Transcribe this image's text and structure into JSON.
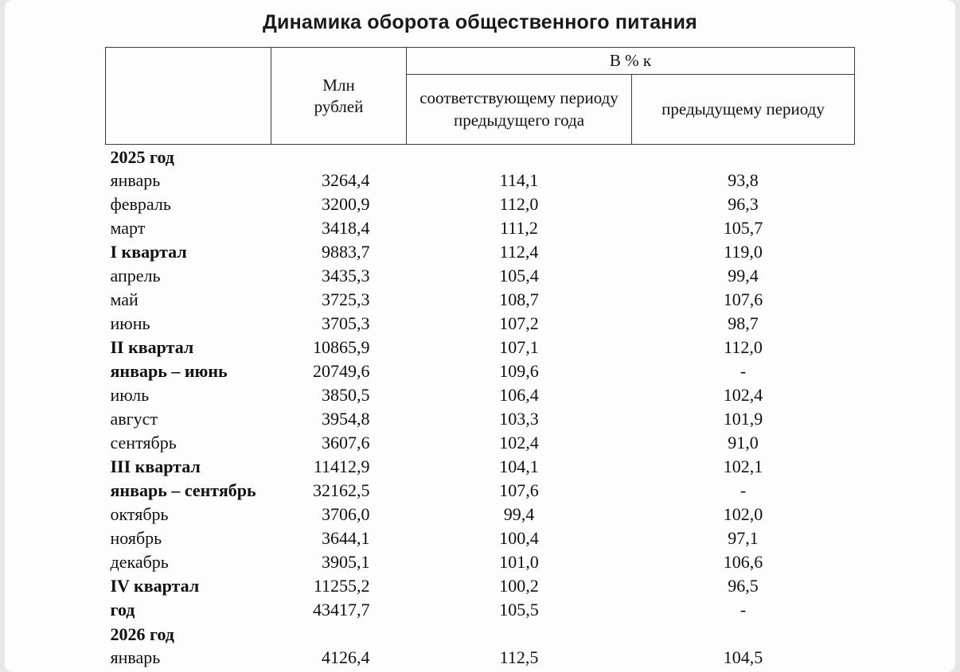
{
  "title": "Динамика оборота общественного питания",
  "table": {
    "header": {
      "unit_col": "Млн\nрублей",
      "percent_group": "В % к",
      "same_period_col": "соответствующему периоду предыдущего года",
      "prev_period_col": "предыдущему периоду"
    },
    "rows": [
      {
        "label": "2025 год",
        "bold": true,
        "mln": "",
        "same": "",
        "prev": ""
      },
      {
        "label": "январь",
        "bold": false,
        "mln": "3264,4",
        "same": "114,1",
        "prev": "93,8"
      },
      {
        "label": "февраль",
        "bold": false,
        "mln": "3200,9",
        "same": "112,0",
        "prev": "96,3"
      },
      {
        "label": "март",
        "bold": false,
        "mln": "3418,4",
        "same": "111,2",
        "prev": "105,7"
      },
      {
        "label": "I квартал",
        "bold": true,
        "mln": "9883,7",
        "same": "112,4",
        "prev": "119,0"
      },
      {
        "label": "апрель",
        "bold": false,
        "mln": "3435,3",
        "same": "105,4",
        "prev": "99,4"
      },
      {
        "label": "май",
        "bold": false,
        "mln": "3725,3",
        "same": "108,7",
        "prev": "107,6"
      },
      {
        "label": "июнь",
        "bold": false,
        "mln": "3705,3",
        "same": "107,2",
        "prev": "98,7"
      },
      {
        "label": "II квартал",
        "bold": true,
        "mln": "10865,9",
        "same": "107,1",
        "prev": "112,0"
      },
      {
        "label": "январь – июнь",
        "bold": true,
        "mln": "20749,6",
        "same": "109,6",
        "prev": "-"
      },
      {
        "label": "июль",
        "bold": false,
        "mln": "3850,5",
        "same": "106,4",
        "prev": "102,4"
      },
      {
        "label": "август",
        "bold": false,
        "mln": "3954,8",
        "same": "103,3",
        "prev": "101,9"
      },
      {
        "label": "сентябрь",
        "bold": false,
        "mln": "3607,6",
        "same": "102,4",
        "prev": "91,0"
      },
      {
        "label": "III квартал",
        "bold": true,
        "mln": "11412,9",
        "same": "104,1",
        "prev": "102,1"
      },
      {
        "label": "январь – сентябрь",
        "bold": true,
        "mln": "32162,5",
        "same": "107,6",
        "prev": "-"
      },
      {
        "label": "октябрь",
        "bold": false,
        "mln": "3706,0",
        "same": "99,4",
        "prev": "102,0"
      },
      {
        "label": "ноябрь",
        "bold": false,
        "mln": "3644,1",
        "same": "100,4",
        "prev": "97,1"
      },
      {
        "label": "декабрь",
        "bold": false,
        "mln": "3905,1",
        "same": "101,0",
        "prev": "106,6"
      },
      {
        "label": "IV квартал",
        "bold": true,
        "mln": "11255,2",
        "same": "100,2",
        "prev": "96,5"
      },
      {
        "label": "год",
        "bold": true,
        "mln": "43417,7",
        "same": "105,5",
        "prev": "-"
      },
      {
        "label": "2026 год",
        "bold": true,
        "mln": "",
        "same": "",
        "prev": ""
      },
      {
        "label": "январь",
        "bold": false,
        "mln": "4126,4",
        "same": "112,5",
        "prev": "104,5"
      }
    ]
  }
}
